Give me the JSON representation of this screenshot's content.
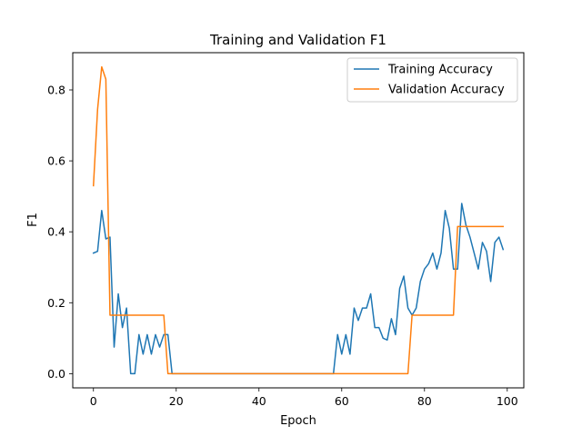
{
  "chart_data": {
    "type": "line",
    "title": "Training and Validation F1",
    "xlabel": "Epoch",
    "ylabel": "F1",
    "xlim": [
      -5,
      104
    ],
    "ylim": [
      -0.04,
      0.905
    ],
    "xticks": [
      0,
      20,
      40,
      60,
      80,
      100
    ],
    "yticks": [
      0.0,
      0.2,
      0.4,
      0.6,
      0.8
    ],
    "ytick_labels": [
      "0.0",
      "0.2",
      "0.4",
      "0.6",
      "0.8"
    ],
    "grid": false,
    "legend_position": "top-right",
    "x": [
      0,
      1,
      2,
      3,
      4,
      5,
      6,
      7,
      8,
      9,
      10,
      11,
      12,
      13,
      14,
      15,
      16,
      17,
      18,
      19,
      20,
      21,
      22,
      23,
      24,
      25,
      26,
      27,
      28,
      29,
      30,
      31,
      32,
      33,
      34,
      35,
      36,
      37,
      38,
      39,
      40,
      41,
      42,
      43,
      44,
      45,
      46,
      47,
      48,
      49,
      50,
      51,
      52,
      53,
      54,
      55,
      56,
      57,
      58,
      59,
      60,
      61,
      62,
      63,
      64,
      65,
      66,
      67,
      68,
      69,
      70,
      71,
      72,
      73,
      74,
      75,
      76,
      77,
      78,
      79,
      80,
      81,
      82,
      83,
      84,
      85,
      86,
      87,
      88,
      89,
      90,
      91,
      92,
      93,
      94,
      95,
      96,
      97,
      98,
      99
    ],
    "series": [
      {
        "name": "Training Accuracy",
        "color": "#1f77b4",
        "values": [
          0.34,
          0.345,
          0.46,
          0.38,
          0.385,
          0.075,
          0.225,
          0.13,
          0.185,
          0.0,
          0.0,
          0.11,
          0.055,
          0.11,
          0.055,
          0.11,
          0.075,
          0.11,
          0.11,
          0.0,
          0.0,
          0.0,
          0.0,
          0.0,
          0.0,
          0.0,
          0.0,
          0.0,
          0.0,
          0.0,
          0.0,
          0.0,
          0.0,
          0.0,
          0.0,
          0.0,
          0.0,
          0.0,
          0.0,
          0.0,
          0.0,
          0.0,
          0.0,
          0.0,
          0.0,
          0.0,
          0.0,
          0.0,
          0.0,
          0.0,
          0.0,
          0.0,
          0.0,
          0.0,
          0.0,
          0.0,
          0.0,
          0.0,
          0.0,
          0.11,
          0.055,
          0.11,
          0.055,
          0.185,
          0.15,
          0.185,
          0.185,
          0.225,
          0.13,
          0.13,
          0.1,
          0.095,
          0.155,
          0.11,
          0.24,
          0.275,
          0.185,
          0.165,
          0.185,
          0.26,
          0.295,
          0.31,
          0.34,
          0.295,
          0.34,
          0.46,
          0.41,
          0.295,
          0.295,
          0.48,
          0.42,
          0.385,
          0.34,
          0.295,
          0.37,
          0.345,
          0.26,
          0.37,
          0.385,
          0.35
        ]
      },
      {
        "name": "Validation Accuracy",
        "color": "#ff7f0e",
        "values": [
          0.53,
          0.745,
          0.865,
          0.83,
          0.165,
          0.165,
          0.165,
          0.165,
          0.165,
          0.165,
          0.165,
          0.165,
          0.165,
          0.165,
          0.165,
          0.165,
          0.165,
          0.165,
          0.0,
          0.0,
          0.0,
          0.0,
          0.0,
          0.0,
          0.0,
          0.0,
          0.0,
          0.0,
          0.0,
          0.0,
          0.0,
          0.0,
          0.0,
          0.0,
          0.0,
          0.0,
          0.0,
          0.0,
          0.0,
          0.0,
          0.0,
          0.0,
          0.0,
          0.0,
          0.0,
          0.0,
          0.0,
          0.0,
          0.0,
          0.0,
          0.0,
          0.0,
          0.0,
          0.0,
          0.0,
          0.0,
          0.0,
          0.0,
          0.0,
          0.0,
          0.0,
          0.0,
          0.0,
          0.0,
          0.0,
          0.0,
          0.0,
          0.0,
          0.0,
          0.0,
          0.0,
          0.0,
          0.0,
          0.0,
          0.0,
          0.0,
          0.0,
          0.165,
          0.165,
          0.165,
          0.165,
          0.165,
          0.165,
          0.165,
          0.165,
          0.165,
          0.165,
          0.165,
          0.415,
          0.415,
          0.415,
          0.415,
          0.415,
          0.415,
          0.415,
          0.415,
          0.415,
          0.415,
          0.415,
          0.415
        ]
      }
    ]
  }
}
